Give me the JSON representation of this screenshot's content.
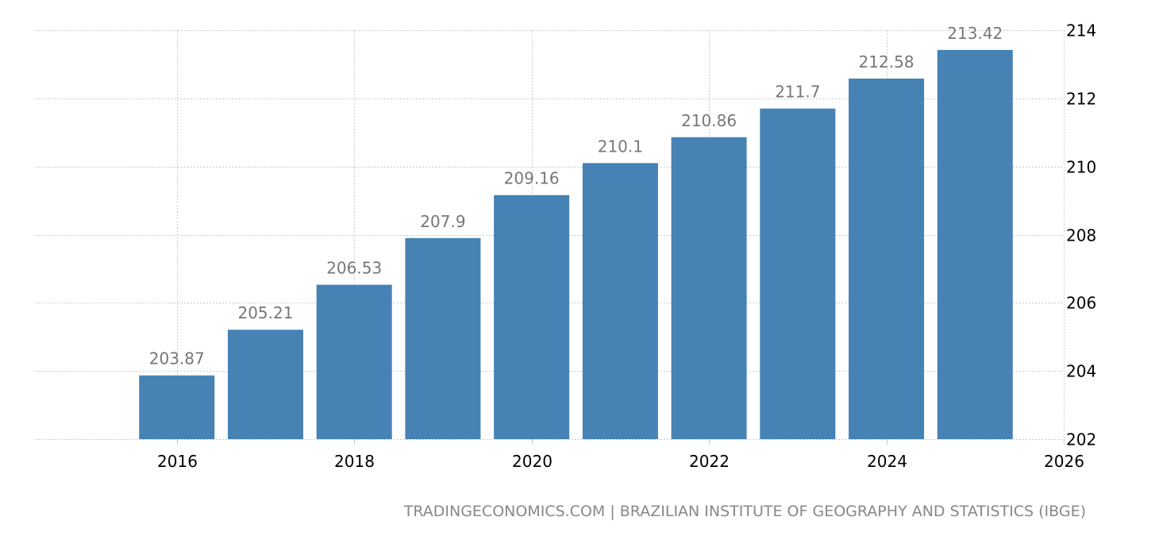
{
  "chart_data": {
    "type": "bar",
    "x": [
      2016,
      2017,
      2018,
      2019,
      2020,
      2021,
      2022,
      2023,
      2024,
      2025
    ],
    "values": [
      203.87,
      205.21,
      206.53,
      207.9,
      209.16,
      210.1,
      210.86,
      211.7,
      212.58,
      213.42
    ],
    "data_labels": [
      "203.87",
      "205.21",
      "206.53",
      "207.9",
      "209.16",
      "210.1",
      "210.86",
      "211.7",
      "212.58",
      "213.42"
    ],
    "xticks": [
      "2016",
      "2018",
      "2020",
      "2022",
      "2024",
      "2026"
    ],
    "xtick_values": [
      2016,
      2018,
      2020,
      2022,
      2024,
      2026
    ],
    "yticks": [
      "202",
      "204",
      "206",
      "208",
      "210",
      "212",
      "214"
    ],
    "ytick_values": [
      202,
      204,
      206,
      208,
      210,
      212,
      214
    ],
    "ylim": [
      202,
      214
    ],
    "xlim": [
      2014.4,
      2026
    ],
    "y_axis_side": "right",
    "grid": true,
    "bar_color": "#4682b4",
    "data_label_color": "#777777",
    "title": "",
    "xlabel": "",
    "ylabel": ""
  },
  "footer": {
    "source": "TRADINGECONOMICS.COM | BRAZILIAN INSTITUTE OF GEOGRAPHY AND STATISTICS (IBGE)"
  }
}
